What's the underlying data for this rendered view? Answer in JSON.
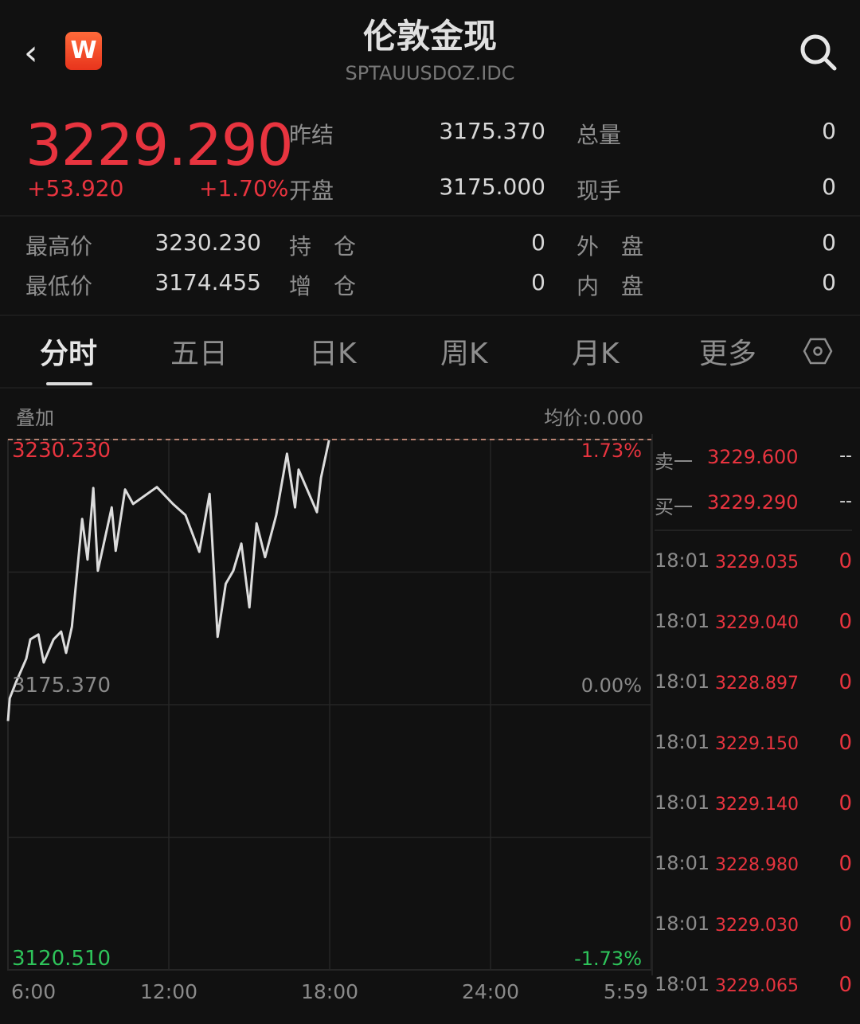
{
  "header": {
    "back_icon": "chevron-left-icon",
    "logo_text": "W",
    "title": "伦敦金现",
    "code": "SPTAUUSDOZ.IDC",
    "search_icon": "search-icon"
  },
  "quote": {
    "price": "3229.290",
    "change": "+53.920",
    "change_pct": "+1.70%",
    "rows": [
      {
        "label": "昨结",
        "value": "3175.370",
        "label2": "总量",
        "value2": "0"
      },
      {
        "label": "开盘",
        "value": "3175.000",
        "label2": "现手",
        "value2": "0"
      },
      {
        "label": "最高价",
        "value": "3230.230",
        "label2": "持　仓",
        "value2": "0",
        "label3": "外　盘",
        "value3": "0"
      },
      {
        "label": "最低价",
        "value": "3174.455",
        "label2": "增　仓",
        "value2": "0",
        "label3": "内　盘",
        "value3": "0"
      }
    ],
    "colors": {
      "up": "#e8343f",
      "down": "#2ec45a"
    }
  },
  "tabs": [
    {
      "label": "分时",
      "active": true
    },
    {
      "label": "五日"
    },
    {
      "label": "日K"
    },
    {
      "label": "周K"
    },
    {
      "label": "月K"
    },
    {
      "label": "更多"
    }
  ],
  "settings_icon": "hexagon-settings-icon",
  "chart_toolbar": {
    "overlay": "叠加",
    "avg_price": "均价:0.000"
  },
  "chart_data": {
    "type": "line",
    "ylim": [
      3120.51,
      3230.23
    ],
    "ref_price": 3175.37,
    "y_left_labels": [
      "3230.230",
      "3175.370",
      "3120.510"
    ],
    "y_right_labels": [
      "1.73%",
      "0.00%",
      "-1.73%"
    ],
    "x_tick_labels": [
      "6:00",
      "12:00",
      "18:00",
      "24:00",
      "5:59"
    ],
    "grid": true,
    "series": [
      {
        "points": [
          [
            "6:00",
            3172.0
          ],
          [
            "6:04",
            3176.7
          ],
          [
            "6:18",
            3180.0
          ],
          [
            "6:41",
            3184.9
          ],
          [
            "6:50",
            3188.9
          ],
          [
            "7:08",
            3189.9
          ],
          [
            "7:20",
            3184.1
          ],
          [
            "7:42",
            3188.9
          ],
          [
            "7:59",
            3190.5
          ],
          [
            "8:10",
            3186.1
          ],
          [
            "8:23",
            3191.5
          ],
          [
            "8:31",
            3199.3
          ],
          [
            "8:46",
            3213.8
          ],
          [
            "8:58",
            3205.4
          ],
          [
            "9:11",
            3220.2
          ],
          [
            "9:21",
            3203.1
          ],
          [
            "9:52",
            3216.2
          ],
          [
            "10:01",
            3207.2
          ],
          [
            "10:22",
            3219.9
          ],
          [
            "10:40",
            3216.9
          ],
          [
            "11:33",
            3220.4
          ],
          [
            "12:09",
            3216.9
          ],
          [
            "12:37",
            3214.6
          ],
          [
            "13:08",
            3207.0
          ],
          [
            "13:31",
            3219.0
          ],
          [
            "13:49",
            3189.4
          ],
          [
            "14:07",
            3200.4
          ],
          [
            "14:24",
            3203.1
          ],
          [
            "14:42",
            3208.7
          ],
          [
            "15:00",
            3195.5
          ],
          [
            "15:16",
            3212.9
          ],
          [
            "15:35",
            3205.9
          ],
          [
            "16:00",
            3214.6
          ],
          [
            "16:24",
            3227.3
          ],
          [
            "16:42",
            3216.2
          ],
          [
            "16:50",
            3224.0
          ],
          [
            "17:31",
            3215.2
          ],
          [
            "17:40",
            3222.3
          ],
          [
            "17:58",
            3230.1
          ]
        ]
      }
    ]
  },
  "order_book": [
    {
      "label": "卖一",
      "price": "3229.600",
      "vol": "--"
    },
    {
      "label": "买一",
      "price": "3229.290",
      "vol": "--"
    }
  ],
  "ticks": [
    {
      "time": "18:01",
      "price": "3229.035",
      "vol": "0"
    },
    {
      "time": "18:01",
      "price": "3229.040",
      "vol": "0"
    },
    {
      "time": "18:01",
      "price": "3228.897",
      "vol": "0"
    },
    {
      "time": "18:01",
      "price": "3229.150",
      "vol": "0"
    },
    {
      "time": "18:01",
      "price": "3229.140",
      "vol": "0"
    },
    {
      "time": "18:01",
      "price": "3228.980",
      "vol": "0"
    },
    {
      "time": "18:01",
      "price": "3229.030",
      "vol": "0"
    },
    {
      "time": "18:01",
      "price": "3229.065",
      "vol": "0"
    }
  ]
}
